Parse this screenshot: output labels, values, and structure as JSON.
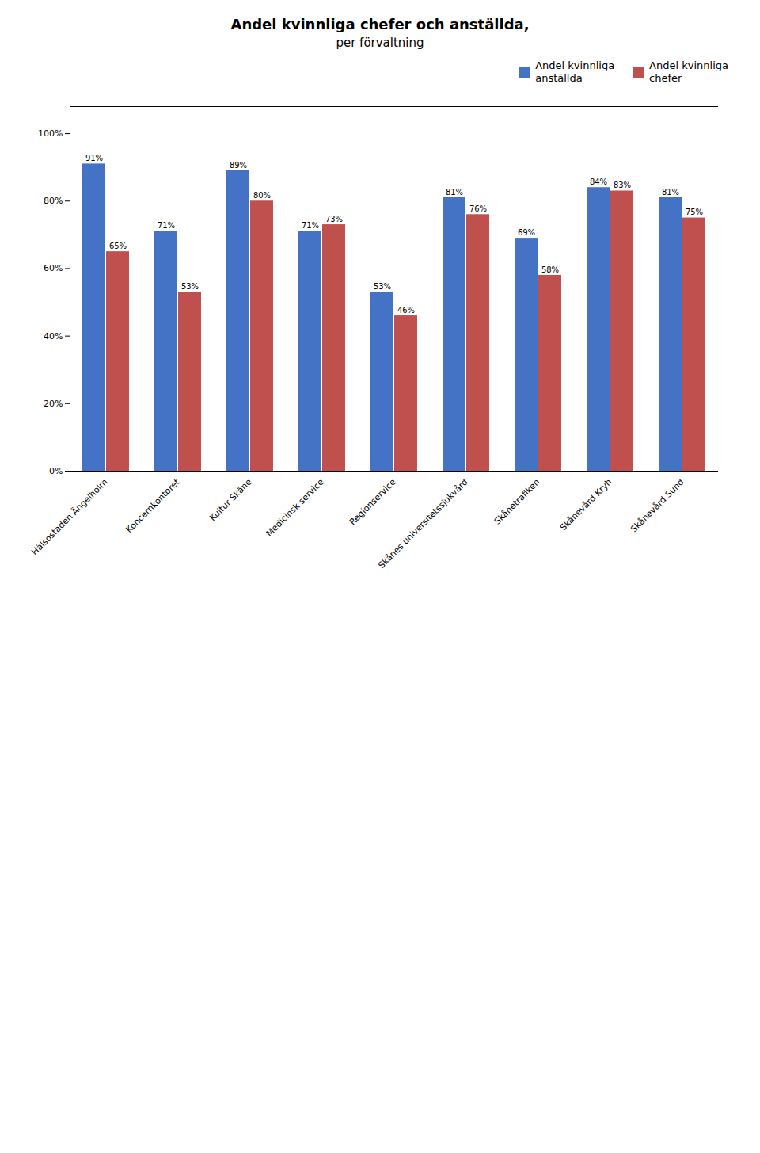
{
  "chart_data": {
    "type": "bar",
    "title": "Andel kvinnliga chefer och anställda,",
    "subtitle": "per förvaltning",
    "categories": [
      "Hälsostaden Ängelholm",
      "Koncernkontoret",
      "Kultur Skåne",
      "Medicinsk service",
      "Regionservice",
      "Skånes universitetssjukvård",
      "Skånetrafiken",
      "Skånevård Kryh",
      "Skånevård Sund"
    ],
    "series": [
      {
        "name": "Andel kvinnliga\nanställda",
        "color": "#4472C4",
        "values": [
          91,
          71,
          89,
          71,
          53,
          81,
          69,
          84,
          81
        ],
        "value_labels": [
          "91%",
          "71%",
          "89%",
          "71%",
          "53%",
          "81%",
          "69%",
          "84%",
          "81%"
        ]
      },
      {
        "name": "Andel kvinnliga\nchefer",
        "color": "#C0504D",
        "values": [
          65,
          53,
          80,
          73,
          46,
          76,
          58,
          83,
          75
        ],
        "value_labels": [
          "65%",
          "53%",
          "80%",
          "73%",
          "46%",
          "76%",
          "58%",
          "83%",
          "75%"
        ]
      }
    ],
    "ylim": [
      0,
      108
    ],
    "yticks": [
      {
        "value": 0,
        "label": "0%"
      },
      {
        "value": 20,
        "label": "20%"
      },
      {
        "value": 40,
        "label": "40%"
      },
      {
        "value": 60,
        "label": "60%"
      },
      {
        "value": 80,
        "label": "80%"
      },
      {
        "value": 100,
        "label": "100%"
      }
    ],
    "legend": "upper right",
    "grid": false,
    "data_labels": true
  }
}
